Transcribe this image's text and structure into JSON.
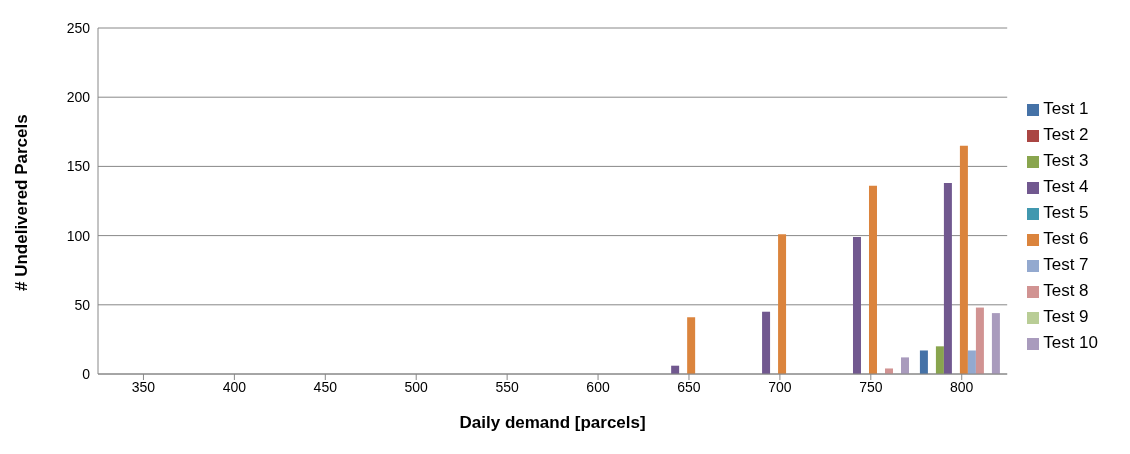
{
  "chart_data": {
    "type": "bar",
    "xlabel": "Daily demand [parcels]",
    "ylabel": "# Undelivered Parcels",
    "categories": [
      "350",
      "400",
      "450",
      "500",
      "550",
      "600",
      "650",
      "700",
      "750",
      "800"
    ],
    "series": [
      {
        "name": "Test 1",
        "color": "#4572a7",
        "values": [
          0,
          0,
          0,
          0,
          0,
          0,
          0,
          0,
          0,
          17
        ]
      },
      {
        "name": "Test 2",
        "color": "#aa4643",
        "values": [
          0,
          0,
          0,
          0,
          0,
          0,
          0,
          0,
          0,
          0
        ]
      },
      {
        "name": "Test 3",
        "color": "#89a54e",
        "values": [
          0,
          0,
          0,
          0,
          0,
          0,
          0,
          0,
          0,
          20
        ]
      },
      {
        "name": "Test 4",
        "color": "#71588f",
        "values": [
          0,
          0,
          0,
          0,
          0,
          0,
          6,
          45,
          99,
          138
        ]
      },
      {
        "name": "Test 5",
        "color": "#4198af",
        "values": [
          0,
          0,
          0,
          0,
          0,
          0,
          0,
          0,
          0,
          0
        ]
      },
      {
        "name": "Test 6",
        "color": "#db843d",
        "values": [
          0,
          0,
          0,
          0,
          0,
          0,
          41,
          101,
          136,
          165
        ]
      },
      {
        "name": "Test 7",
        "color": "#93a9cf",
        "values": [
          0,
          0,
          0,
          0,
          0,
          0,
          0,
          0,
          0,
          17
        ]
      },
      {
        "name": "Test 8",
        "color": "#d19392",
        "values": [
          0,
          0,
          0,
          0,
          0,
          0,
          0,
          0,
          4,
          48
        ]
      },
      {
        "name": "Test 9",
        "color": "#b9cd96",
        "values": [
          0,
          0,
          0,
          0,
          0,
          0,
          0,
          0,
          0,
          0
        ]
      },
      {
        "name": "Test 10",
        "color": "#a99bbd",
        "values": [
          0,
          0,
          0,
          0,
          0,
          0,
          0,
          0,
          12,
          44
        ]
      }
    ],
    "ylim": [
      0,
      250
    ],
    "yticks": [
      0,
      50,
      100,
      150,
      200,
      250
    ],
    "grid": "y",
    "legend": "right"
  }
}
